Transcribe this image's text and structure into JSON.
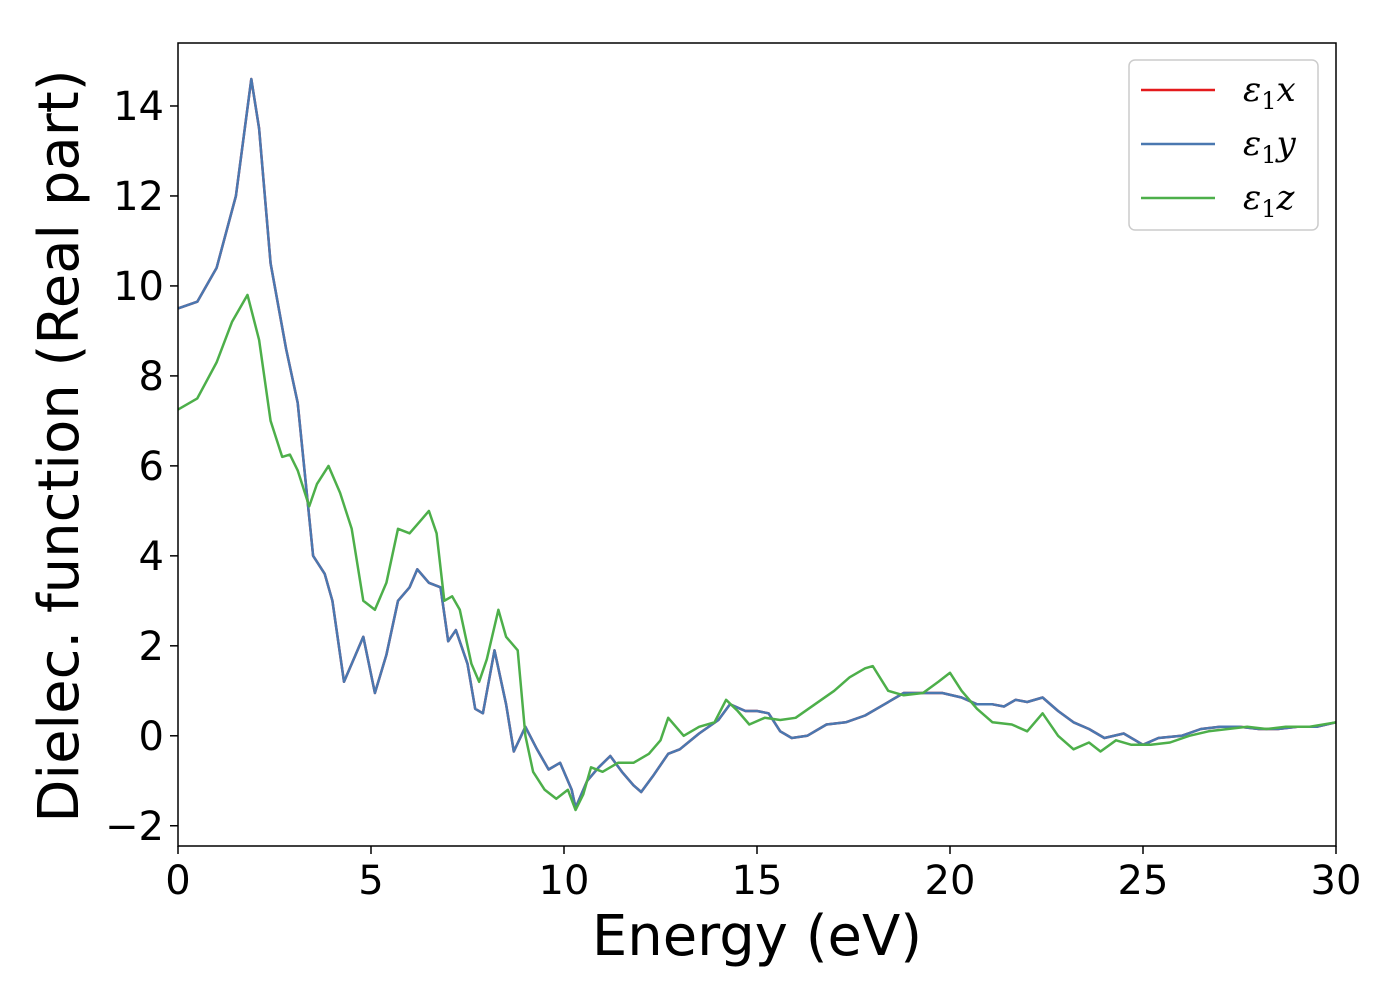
{
  "chart_data": {
    "type": "line",
    "xlabel": "Energy (eV)",
    "ylabel": "Dielec. function (Real part)",
    "xlim": [
      0,
      30
    ],
    "ylim": [
      -2.45,
      15.4
    ],
    "xticks": [
      0,
      5,
      10,
      15,
      20,
      25,
      30
    ],
    "yticks": [
      -2,
      0,
      2,
      4,
      6,
      8,
      10,
      12,
      14
    ],
    "grid": false,
    "legend_position": "top-right",
    "series": [
      {
        "name": "ε1x",
        "legend_main": "ε",
        "legend_sub": "1",
        "legend_var": "x",
        "color": "#e41a1c",
        "points": [
          [
            0,
            9.5
          ],
          [
            0.5,
            9.65
          ],
          [
            1.0,
            10.4
          ],
          [
            1.5,
            12.0
          ],
          [
            1.9,
            14.6
          ],
          [
            2.1,
            13.5
          ],
          [
            2.4,
            10.5
          ],
          [
            2.8,
            8.6
          ],
          [
            3.1,
            7.4
          ],
          [
            3.5,
            4.0
          ],
          [
            3.8,
            3.6
          ],
          [
            4.0,
            3.0
          ],
          [
            4.3,
            1.2
          ],
          [
            4.6,
            1.8
          ],
          [
            4.8,
            2.2
          ],
          [
            5.1,
            0.95
          ],
          [
            5.4,
            1.8
          ],
          [
            5.7,
            3.0
          ],
          [
            6.0,
            3.3
          ],
          [
            6.2,
            3.7
          ],
          [
            6.5,
            3.4
          ],
          [
            6.8,
            3.3
          ],
          [
            7.0,
            2.1
          ],
          [
            7.2,
            2.35
          ],
          [
            7.5,
            1.6
          ],
          [
            7.7,
            0.6
          ],
          [
            7.9,
            0.5
          ],
          [
            8.2,
            1.9
          ],
          [
            8.5,
            0.7
          ],
          [
            8.7,
            -0.35
          ],
          [
            9.0,
            0.2
          ],
          [
            9.3,
            -0.3
          ],
          [
            9.6,
            -0.75
          ],
          [
            9.9,
            -0.6
          ],
          [
            10.2,
            -1.2
          ],
          [
            10.3,
            -1.6
          ],
          [
            10.6,
            -1.0
          ],
          [
            10.9,
            -0.7
          ],
          [
            11.2,
            -0.45
          ],
          [
            11.5,
            -0.8
          ],
          [
            11.8,
            -1.1
          ],
          [
            12.0,
            -1.25
          ],
          [
            12.3,
            -0.9
          ],
          [
            12.7,
            -0.4
          ],
          [
            13.0,
            -0.3
          ],
          [
            13.5,
            0.05
          ],
          [
            14.0,
            0.35
          ],
          [
            14.3,
            0.7
          ],
          [
            14.7,
            0.55
          ],
          [
            15.0,
            0.55
          ],
          [
            15.3,
            0.5
          ],
          [
            15.6,
            0.1
          ],
          [
            15.9,
            -0.05
          ],
          [
            16.3,
            0.0
          ],
          [
            16.8,
            0.25
          ],
          [
            17.3,
            0.3
          ],
          [
            17.8,
            0.45
          ],
          [
            18.3,
            0.7
          ],
          [
            18.8,
            0.95
          ],
          [
            19.3,
            0.95
          ],
          [
            19.8,
            0.95
          ],
          [
            20.3,
            0.85
          ],
          [
            20.7,
            0.7
          ],
          [
            21.1,
            0.7
          ],
          [
            21.4,
            0.65
          ],
          [
            21.7,
            0.8
          ],
          [
            22.0,
            0.75
          ],
          [
            22.4,
            0.85
          ],
          [
            22.8,
            0.55
          ],
          [
            23.2,
            0.3
          ],
          [
            23.6,
            0.15
          ],
          [
            24.0,
            -0.05
          ],
          [
            24.5,
            0.05
          ],
          [
            25.0,
            -0.2
          ],
          [
            25.4,
            -0.05
          ],
          [
            26.0,
            0.0
          ],
          [
            26.5,
            0.15
          ],
          [
            27.0,
            0.2
          ],
          [
            27.5,
            0.2
          ],
          [
            28.0,
            0.15
          ],
          [
            28.5,
            0.15
          ],
          [
            29.0,
            0.2
          ],
          [
            29.5,
            0.2
          ],
          [
            30.0,
            0.3
          ]
        ]
      },
      {
        "name": "ε1y",
        "legend_main": "ε",
        "legend_sub": "1",
        "legend_var": "y",
        "color": "#4a78b0",
        "points": [
          [
            0,
            9.5
          ],
          [
            0.5,
            9.65
          ],
          [
            1.0,
            10.4
          ],
          [
            1.5,
            12.0
          ],
          [
            1.9,
            14.6
          ],
          [
            2.1,
            13.5
          ],
          [
            2.4,
            10.5
          ],
          [
            2.8,
            8.6
          ],
          [
            3.1,
            7.4
          ],
          [
            3.5,
            4.0
          ],
          [
            3.8,
            3.6
          ],
          [
            4.0,
            3.0
          ],
          [
            4.3,
            1.2
          ],
          [
            4.6,
            1.8
          ],
          [
            4.8,
            2.2
          ],
          [
            5.1,
            0.95
          ],
          [
            5.4,
            1.8
          ],
          [
            5.7,
            3.0
          ],
          [
            6.0,
            3.3
          ],
          [
            6.2,
            3.7
          ],
          [
            6.5,
            3.4
          ],
          [
            6.8,
            3.3
          ],
          [
            7.0,
            2.1
          ],
          [
            7.2,
            2.35
          ],
          [
            7.5,
            1.6
          ],
          [
            7.7,
            0.6
          ],
          [
            7.9,
            0.5
          ],
          [
            8.2,
            1.9
          ],
          [
            8.5,
            0.7
          ],
          [
            8.7,
            -0.35
          ],
          [
            9.0,
            0.2
          ],
          [
            9.3,
            -0.3
          ],
          [
            9.6,
            -0.75
          ],
          [
            9.9,
            -0.6
          ],
          [
            10.2,
            -1.2
          ],
          [
            10.3,
            -1.6
          ],
          [
            10.6,
            -1.0
          ],
          [
            10.9,
            -0.7
          ],
          [
            11.2,
            -0.45
          ],
          [
            11.5,
            -0.8
          ],
          [
            11.8,
            -1.1
          ],
          [
            12.0,
            -1.25
          ],
          [
            12.3,
            -0.9
          ],
          [
            12.7,
            -0.4
          ],
          [
            13.0,
            -0.3
          ],
          [
            13.5,
            0.05
          ],
          [
            14.0,
            0.35
          ],
          [
            14.3,
            0.7
          ],
          [
            14.7,
            0.55
          ],
          [
            15.0,
            0.55
          ],
          [
            15.3,
            0.5
          ],
          [
            15.6,
            0.1
          ],
          [
            15.9,
            -0.05
          ],
          [
            16.3,
            0.0
          ],
          [
            16.8,
            0.25
          ],
          [
            17.3,
            0.3
          ],
          [
            17.8,
            0.45
          ],
          [
            18.3,
            0.7
          ],
          [
            18.8,
            0.95
          ],
          [
            19.3,
            0.95
          ],
          [
            19.8,
            0.95
          ],
          [
            20.3,
            0.85
          ],
          [
            20.7,
            0.7
          ],
          [
            21.1,
            0.7
          ],
          [
            21.4,
            0.65
          ],
          [
            21.7,
            0.8
          ],
          [
            22.0,
            0.75
          ],
          [
            22.4,
            0.85
          ],
          [
            22.8,
            0.55
          ],
          [
            23.2,
            0.3
          ],
          [
            23.6,
            0.15
          ],
          [
            24.0,
            -0.05
          ],
          [
            24.5,
            0.05
          ],
          [
            25.0,
            -0.2
          ],
          [
            25.4,
            -0.05
          ],
          [
            26.0,
            0.0
          ],
          [
            26.5,
            0.15
          ],
          [
            27.0,
            0.2
          ],
          [
            27.5,
            0.2
          ],
          [
            28.0,
            0.15
          ],
          [
            28.5,
            0.15
          ],
          [
            29.0,
            0.2
          ],
          [
            29.5,
            0.2
          ],
          [
            30.0,
            0.3
          ]
        ]
      },
      {
        "name": "ε1z",
        "legend_main": "ε",
        "legend_sub": "1",
        "legend_var": "z",
        "color": "#4daf4a",
        "points": [
          [
            0,
            7.25
          ],
          [
            0.5,
            7.5
          ],
          [
            1.0,
            8.3
          ],
          [
            1.4,
            9.2
          ],
          [
            1.8,
            9.8
          ],
          [
            2.1,
            8.8
          ],
          [
            2.4,
            7.0
          ],
          [
            2.7,
            6.2
          ],
          [
            2.9,
            6.25
          ],
          [
            3.1,
            5.9
          ],
          [
            3.4,
            5.1
          ],
          [
            3.6,
            5.6
          ],
          [
            3.9,
            6.0
          ],
          [
            4.2,
            5.4
          ],
          [
            4.5,
            4.6
          ],
          [
            4.8,
            3.0
          ],
          [
            5.1,
            2.8
          ],
          [
            5.4,
            3.4
          ],
          [
            5.7,
            4.6
          ],
          [
            6.0,
            4.5
          ],
          [
            6.3,
            4.8
          ],
          [
            6.5,
            5.0
          ],
          [
            6.7,
            4.5
          ],
          [
            6.9,
            3.0
          ],
          [
            7.1,
            3.1
          ],
          [
            7.3,
            2.8
          ],
          [
            7.6,
            1.6
          ],
          [
            7.8,
            1.2
          ],
          [
            8.0,
            1.7
          ],
          [
            8.3,
            2.8
          ],
          [
            8.5,
            2.2
          ],
          [
            8.8,
            1.9
          ],
          [
            9.0,
            0.0
          ],
          [
            9.2,
            -0.8
          ],
          [
            9.5,
            -1.2
          ],
          [
            9.8,
            -1.4
          ],
          [
            10.1,
            -1.2
          ],
          [
            10.3,
            -1.65
          ],
          [
            10.5,
            -1.3
          ],
          [
            10.7,
            -0.7
          ],
          [
            11.0,
            -0.8
          ],
          [
            11.4,
            -0.6
          ],
          [
            11.8,
            -0.6
          ],
          [
            12.2,
            -0.4
          ],
          [
            12.5,
            -0.1
          ],
          [
            12.7,
            0.4
          ],
          [
            13.1,
            0.0
          ],
          [
            13.5,
            0.2
          ],
          [
            13.9,
            0.3
          ],
          [
            14.2,
            0.8
          ],
          [
            14.5,
            0.55
          ],
          [
            14.8,
            0.25
          ],
          [
            15.2,
            0.4
          ],
          [
            15.6,
            0.35
          ],
          [
            16.0,
            0.4
          ],
          [
            16.5,
            0.7
          ],
          [
            17.0,
            1.0
          ],
          [
            17.4,
            1.3
          ],
          [
            17.8,
            1.5
          ],
          [
            18.0,
            1.55
          ],
          [
            18.4,
            1.0
          ],
          [
            18.8,
            0.9
          ],
          [
            19.3,
            0.95
          ],
          [
            19.7,
            1.2
          ],
          [
            20.0,
            1.4
          ],
          [
            20.3,
            1.0
          ],
          [
            20.7,
            0.6
          ],
          [
            21.1,
            0.3
          ],
          [
            21.6,
            0.25
          ],
          [
            22.0,
            0.1
          ],
          [
            22.4,
            0.5
          ],
          [
            22.8,
            0.0
          ],
          [
            23.2,
            -0.3
          ],
          [
            23.6,
            -0.15
          ],
          [
            23.9,
            -0.35
          ],
          [
            24.3,
            -0.1
          ],
          [
            24.7,
            -0.2
          ],
          [
            25.2,
            -0.2
          ],
          [
            25.7,
            -0.15
          ],
          [
            26.2,
            0.0
          ],
          [
            26.7,
            0.1
          ],
          [
            27.2,
            0.15
          ],
          [
            27.7,
            0.2
          ],
          [
            28.2,
            0.15
          ],
          [
            28.7,
            0.2
          ],
          [
            29.3,
            0.2
          ],
          [
            30.0,
            0.3
          ]
        ]
      }
    ]
  }
}
